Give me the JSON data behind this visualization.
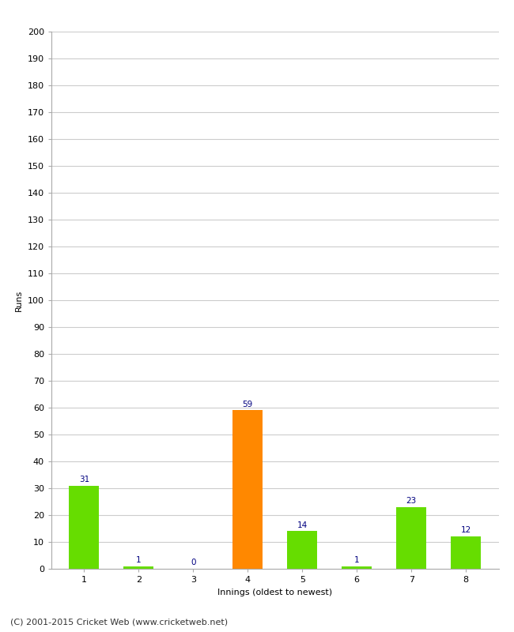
{
  "categories": [
    "1",
    "2",
    "3",
    "4",
    "5",
    "6",
    "7",
    "8"
  ],
  "values": [
    31,
    1,
    0,
    59,
    14,
    1,
    23,
    12
  ],
  "bar_colors": [
    "#66dd00",
    "#66dd00",
    "#66dd00",
    "#ff8800",
    "#66dd00",
    "#66dd00",
    "#66dd00",
    "#66dd00"
  ],
  "xlabel": "Innings (oldest to newest)",
  "ylabel": "Runs",
  "ylim": [
    0,
    200
  ],
  "yticks": [
    0,
    10,
    20,
    30,
    40,
    50,
    60,
    70,
    80,
    90,
    100,
    110,
    120,
    130,
    140,
    150,
    160,
    170,
    180,
    190,
    200
  ],
  "value_label_color": "#000080",
  "value_label_fontsize": 7.5,
  "background_color": "#ffffff",
  "footer": "(C) 2001-2015 Cricket Web (www.cricketweb.net)",
  "footer_fontsize": 8,
  "bar_width": 0.55,
  "grid_color": "#cccccc",
  "spine_color": "#aaaaaa",
  "tick_fontsize": 8,
  "xlabel_fontsize": 8,
  "ylabel_fontsize": 8
}
